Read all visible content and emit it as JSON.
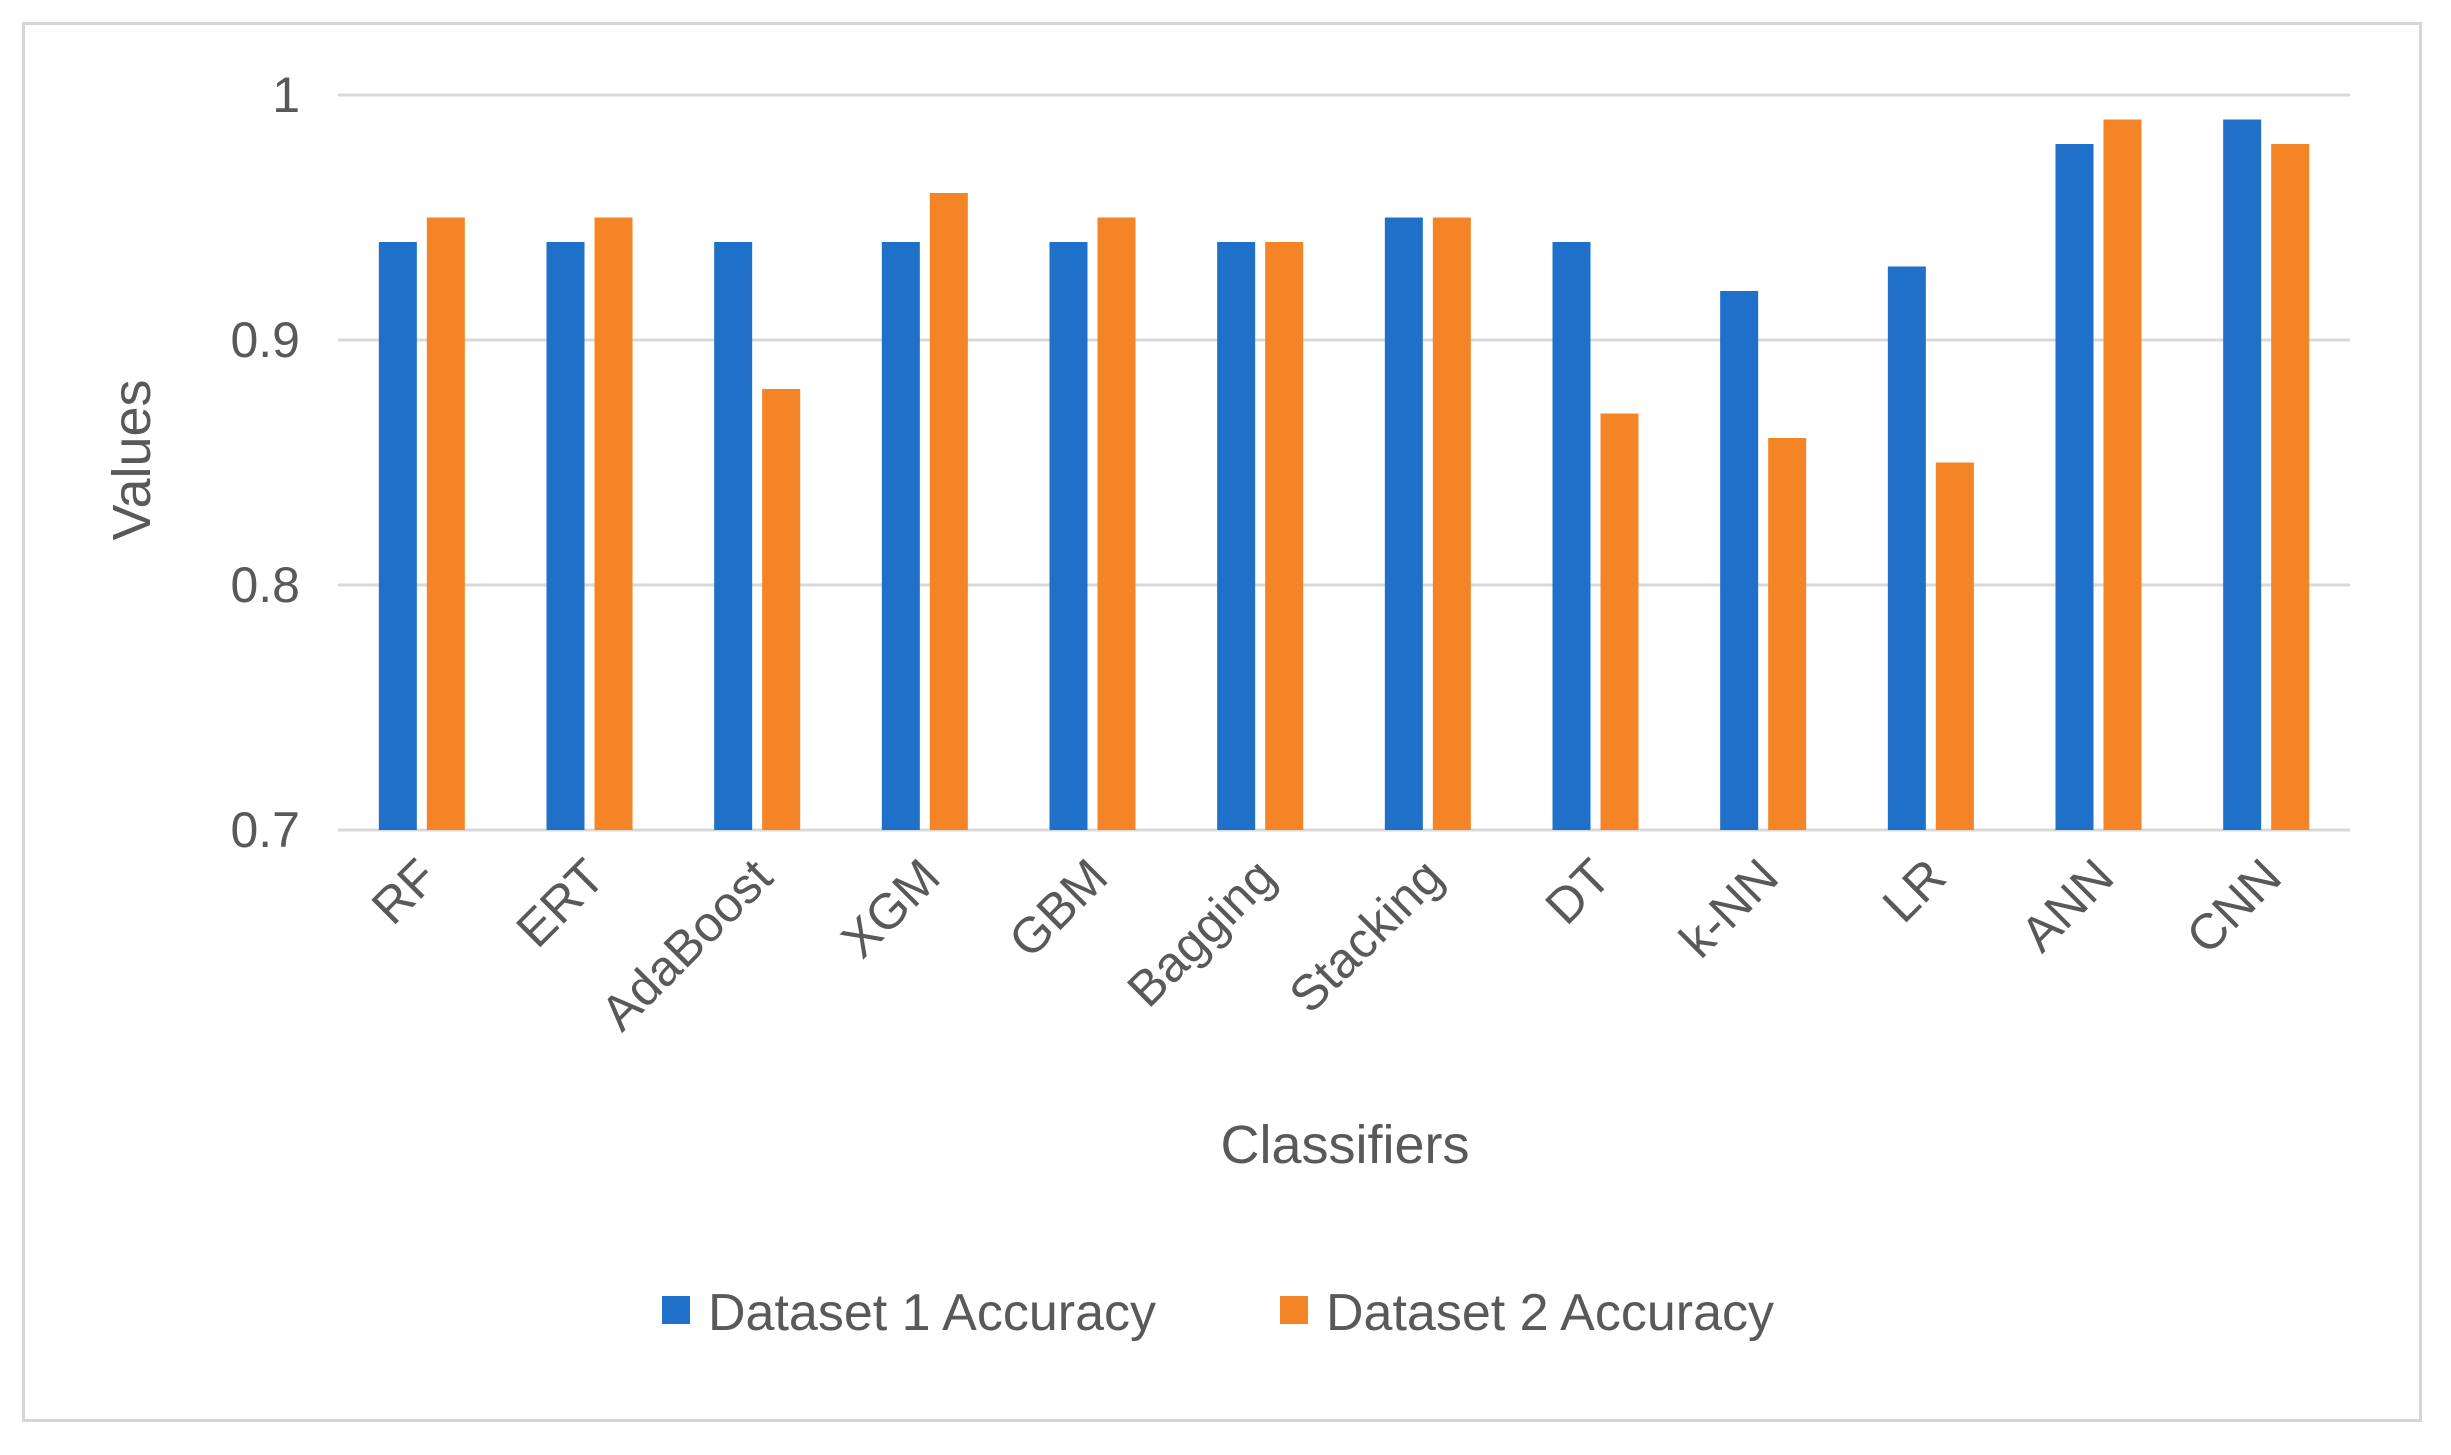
{
  "chart_data": {
    "type": "bar",
    "title": "",
    "xlabel": "Classifiers",
    "ylabel": "Values",
    "ylim": [
      0.7,
      1.0
    ],
    "yticks": [
      0.7,
      0.8,
      0.9,
      1
    ],
    "ytick_labels": [
      "0.7",
      "0.8",
      "0.9",
      "1"
    ],
    "grid": true,
    "legend_position": "bottom",
    "categories": [
      "RF",
      "ERT",
      "AdaBoost",
      "XGM",
      "GBM",
      "Bagging",
      "Stacking",
      "DT",
      "k-NN",
      "LR",
      "ANN",
      "CNN"
    ],
    "series": [
      {
        "name": "Dataset 1 Accuracy",
        "color": "#1f70c8",
        "values": [
          0.94,
          0.94,
          0.94,
          0.94,
          0.94,
          0.94,
          0.95,
          0.94,
          0.92,
          0.93,
          0.98,
          0.99
        ]
      },
      {
        "name": "Dataset 2 Accuracy",
        "color": "#f58426",
        "values": [
          0.95,
          0.95,
          0.88,
          0.96,
          0.95,
          0.94,
          0.95,
          0.87,
          0.86,
          0.85,
          0.99,
          0.98
        ]
      }
    ]
  }
}
